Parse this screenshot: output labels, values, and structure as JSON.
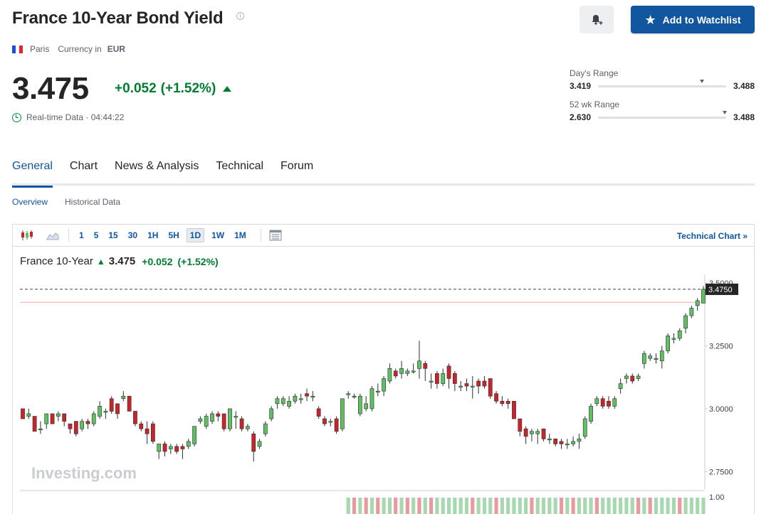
{
  "header": {
    "title": "France 10-Year Bond Yield",
    "info_glyph": "i",
    "add_watchlist_label": "Add to Watchlist",
    "location": "Paris",
    "currency_label": "Currency in",
    "currency_value": "EUR"
  },
  "quote": {
    "price": "3.475",
    "change": "+0.052",
    "change_pct": "(+1.52%)",
    "realtime_label": "Real-time Data · 04:44:22"
  },
  "ranges": {
    "day": {
      "label": "Day's Range",
      "low": "3.419",
      "high": "3.488",
      "position": 0.81
    },
    "week52": {
      "label": "52 wk Range",
      "low": "2.630",
      "high": "3.488",
      "position": 0.99
    }
  },
  "tabs": [
    "General",
    "Chart",
    "News & Analysis",
    "Technical",
    "Forum"
  ],
  "active_tab": 0,
  "subtabs": [
    "Overview",
    "Historical Data"
  ],
  "toolbar": {
    "timeframes": [
      "1",
      "5",
      "15",
      "30",
      "1H",
      "5H",
      "1D",
      "1W",
      "1M"
    ],
    "active_timeframe": "1D",
    "technical_chart_label": "Technical Chart »"
  },
  "chart_legend": {
    "name": "France 10-Year",
    "price": "3.475",
    "change": "+0.052",
    "change_pct": "(+1.52%)"
  },
  "watermark": "Investing.com",
  "colors": {
    "accent": "#1256a0",
    "up": "#0a8a3e",
    "candle_up": "#5fbf62",
    "candle_down": "#c8252b",
    "vol_up": "#a7d8b0",
    "vol_down": "#e89a9f",
    "prev_close_line": "#f3a9a9"
  },
  "icons": {
    "bell": "bell-plus-icon",
    "star": "star-icon",
    "flag": "france-flag-icon",
    "clock": "clock-icon"
  },
  "chart_data": {
    "type": "candlestick",
    "y_ticks": [
      "3.5000",
      "3.2500",
      "3.0000",
      "2.7500"
    ],
    "ylim": [
      2.7,
      3.52
    ],
    "last_price_label": "3.4750",
    "last_price": 3.475,
    "prev_close": 3.423,
    "volume_axis_label": "1.00",
    "candles": [
      [
        3.0,
        2.96,
        3.0,
        2.96
      ],
      [
        2.97,
        2.98,
        3.0,
        2.96
      ],
      [
        2.97,
        2.91,
        2.97,
        2.91
      ],
      [
        2.92,
        2.92,
        2.95,
        2.9
      ],
      [
        2.94,
        2.98,
        2.98,
        2.92
      ],
      [
        2.98,
        2.94,
        2.98,
        2.94
      ],
      [
        2.97,
        2.98,
        2.99,
        2.95
      ],
      [
        2.98,
        2.95,
        2.98,
        2.93
      ],
      [
        2.94,
        2.92,
        2.94,
        2.9
      ],
      [
        2.95,
        2.9,
        2.95,
        2.89
      ],
      [
        2.92,
        2.95,
        2.96,
        2.91
      ],
      [
        2.95,
        2.94,
        2.96,
        2.92
      ],
      [
        2.94,
        2.98,
        2.99,
        2.93
      ],
      [
        2.97,
        3.01,
        3.03,
        2.96
      ],
      [
        2.99,
        2.99,
        3.0,
        2.96
      ],
      [
        3.04,
        2.99,
        3.05,
        2.98
      ],
      [
        3.02,
        2.98,
        3.02,
        2.96
      ],
      [
        3.04,
        3.05,
        3.07,
        3.03
      ],
      [
        3.05,
        2.99,
        3.05,
        2.99
      ],
      [
        2.99,
        2.94,
        2.99,
        2.93
      ],
      [
        2.94,
        2.92,
        2.95,
        2.91
      ],
      [
        2.92,
        2.9,
        2.95,
        2.86
      ],
      [
        2.94,
        2.87,
        2.95,
        2.86
      ],
      [
        2.83,
        2.86,
        2.86,
        2.8
      ],
      [
        2.86,
        2.83,
        2.87,
        2.81
      ],
      [
        2.84,
        2.85,
        2.86,
        2.82
      ],
      [
        2.85,
        2.83,
        2.86,
        2.82
      ],
      [
        2.85,
        2.84,
        2.86,
        2.8
      ],
      [
        2.85,
        2.87,
        2.88,
        2.84
      ],
      [
        2.86,
        2.93,
        2.93,
        2.85
      ],
      [
        2.95,
        2.96,
        2.97,
        2.94
      ],
      [
        2.93,
        2.97,
        2.98,
        2.92
      ],
      [
        2.95,
        2.98,
        2.99,
        2.94
      ],
      [
        2.98,
        2.97,
        2.99,
        2.95
      ],
      [
        2.98,
        2.92,
        2.98,
        2.91
      ],
      [
        2.92,
        3.0,
        3.0,
        2.91
      ],
      [
        2.97,
        2.97,
        2.99,
        2.92
      ],
      [
        2.96,
        2.92,
        2.97,
        2.91
      ],
      [
        2.92,
        2.93,
        2.94,
        2.91
      ],
      [
        2.9,
        2.83,
        2.91,
        2.79
      ],
      [
        2.85,
        2.87,
        2.88,
        2.84
      ],
      [
        2.9,
        2.94,
        2.95,
        2.89
      ],
      [
        2.96,
        3.0,
        3.01,
        2.95
      ],
      [
        3.02,
        3.04,
        3.05,
        3.0
      ],
      [
        3.02,
        3.04,
        3.05,
        3.01
      ],
      [
        3.01,
        3.03,
        3.05,
        3.0
      ],
      [
        3.03,
        3.05,
        3.06,
        3.02
      ],
      [
        3.04,
        3.04,
        3.06,
        3.02
      ],
      [
        3.06,
        3.05,
        3.08,
        3.03
      ],
      [
        3.05,
        3.05,
        3.07,
        3.03
      ],
      [
        3.0,
        2.97,
        3.01,
        2.96
      ],
      [
        2.96,
        2.94,
        2.97,
        2.93
      ],
      [
        2.95,
        2.95,
        2.96,
        2.93
      ],
      [
        2.96,
        2.91,
        2.97,
        2.9
      ],
      [
        2.92,
        3.04,
        3.04,
        2.91
      ],
      [
        3.06,
        3.06,
        3.07,
        3.04
      ],
      [
        3.05,
        3.05,
        3.06,
        3.04
      ],
      [
        2.98,
        3.05,
        3.06,
        2.97
      ],
      [
        3.0,
        3.02,
        3.05,
        2.99
      ],
      [
        3.0,
        3.08,
        3.09,
        2.99
      ],
      [
        3.07,
        3.07,
        3.1,
        3.05
      ],
      [
        3.07,
        3.12,
        3.13,
        3.05
      ],
      [
        3.11,
        3.16,
        3.18,
        3.1
      ],
      [
        3.15,
        3.13,
        3.16,
        3.12
      ],
      [
        3.14,
        3.16,
        3.19,
        3.12
      ],
      [
        3.14,
        3.15,
        3.16,
        3.13
      ],
      [
        3.15,
        3.15,
        3.18,
        3.14
      ],
      [
        3.16,
        3.19,
        3.27,
        3.12
      ],
      [
        3.18,
        3.16,
        3.19,
        3.11
      ],
      [
        3.11,
        3.11,
        3.14,
        3.08
      ],
      [
        3.14,
        3.1,
        3.15,
        3.08
      ],
      [
        3.1,
        3.14,
        3.16,
        3.09
      ],
      [
        3.17,
        3.12,
        3.18,
        3.08
      ],
      [
        3.14,
        3.1,
        3.15,
        3.07
      ],
      [
        3.09,
        3.09,
        3.11,
        3.07
      ],
      [
        3.1,
        3.09,
        3.12,
        3.07
      ],
      [
        3.09,
        3.09,
        3.13,
        3.04
      ],
      [
        3.11,
        3.09,
        3.12,
        3.06
      ],
      [
        3.11,
        3.09,
        3.13,
        3.08
      ],
      [
        3.12,
        3.05,
        3.12,
        3.04
      ],
      [
        3.06,
        3.03,
        3.07,
        3.02
      ],
      [
        3.03,
        3.02,
        3.05,
        3.01
      ],
      [
        3.03,
        3.02,
        3.04,
        3.0
      ],
      [
        3.03,
        2.96,
        3.03,
        2.96
      ],
      [
        2.96,
        2.91,
        2.96,
        2.89
      ],
      [
        2.92,
        2.89,
        2.93,
        2.86
      ],
      [
        2.9,
        2.91,
        2.92,
        2.87
      ],
      [
        2.9,
        2.91,
        2.92,
        2.86
      ],
      [
        2.92,
        2.88,
        2.92,
        2.87
      ],
      [
        2.88,
        2.88,
        2.9,
        2.86
      ],
      [
        2.88,
        2.86,
        2.88,
        2.85
      ],
      [
        2.87,
        2.86,
        2.88,
        2.84
      ],
      [
        2.86,
        2.86,
        2.88,
        2.84
      ],
      [
        2.86,
        2.87,
        2.89,
        2.85
      ],
      [
        2.87,
        2.88,
        2.9,
        2.84
      ],
      [
        2.89,
        2.96,
        2.97,
        2.88
      ],
      [
        2.95,
        3.01,
        3.02,
        2.94
      ],
      [
        3.02,
        3.04,
        3.05,
        3.01
      ],
      [
        3.04,
        3.01,
        3.05,
        3.0
      ],
      [
        3.03,
        3.01,
        3.05,
        3.0
      ],
      [
        3.01,
        3.04,
        3.05,
        3.0
      ],
      [
        3.08,
        3.1,
        3.12,
        3.06
      ],
      [
        3.12,
        3.13,
        3.14,
        3.1
      ],
      [
        3.13,
        3.11,
        3.14,
        3.1
      ],
      [
        3.12,
        3.13,
        3.14,
        3.11
      ],
      [
        3.18,
        3.22,
        3.23,
        3.16
      ],
      [
        3.2,
        3.21,
        3.22,
        3.19
      ],
      [
        3.2,
        3.2,
        3.22,
        3.18
      ],
      [
        3.19,
        3.23,
        3.25,
        3.16
      ],
      [
        3.23,
        3.29,
        3.3,
        3.22
      ],
      [
        3.28,
        3.28,
        3.3,
        3.26
      ],
      [
        3.28,
        3.31,
        3.32,
        3.27
      ],
      [
        3.32,
        3.37,
        3.38,
        3.3
      ],
      [
        3.37,
        3.4,
        3.41,
        3.36
      ],
      [
        3.41,
        3.43,
        3.44,
        3.39
      ],
      [
        3.42,
        3.475,
        3.488,
        3.419
      ]
    ],
    "volume_up_flags": [
      1,
      0,
      1,
      0,
      1,
      0,
      1,
      1,
      0,
      1,
      0,
      1,
      0,
      1,
      0,
      1,
      1,
      1,
      1,
      1,
      1,
      0,
      1,
      1,
      1,
      0,
      1,
      1,
      1,
      1,
      1,
      0,
      1,
      1,
      1,
      1,
      0,
      1,
      0,
      1,
      1,
      1,
      0,
      1,
      1,
      1,
      1,
      1,
      1,
      0,
      1,
      0,
      1,
      1,
      1,
      1,
      0,
      1,
      1,
      1,
      1
    ]
  }
}
